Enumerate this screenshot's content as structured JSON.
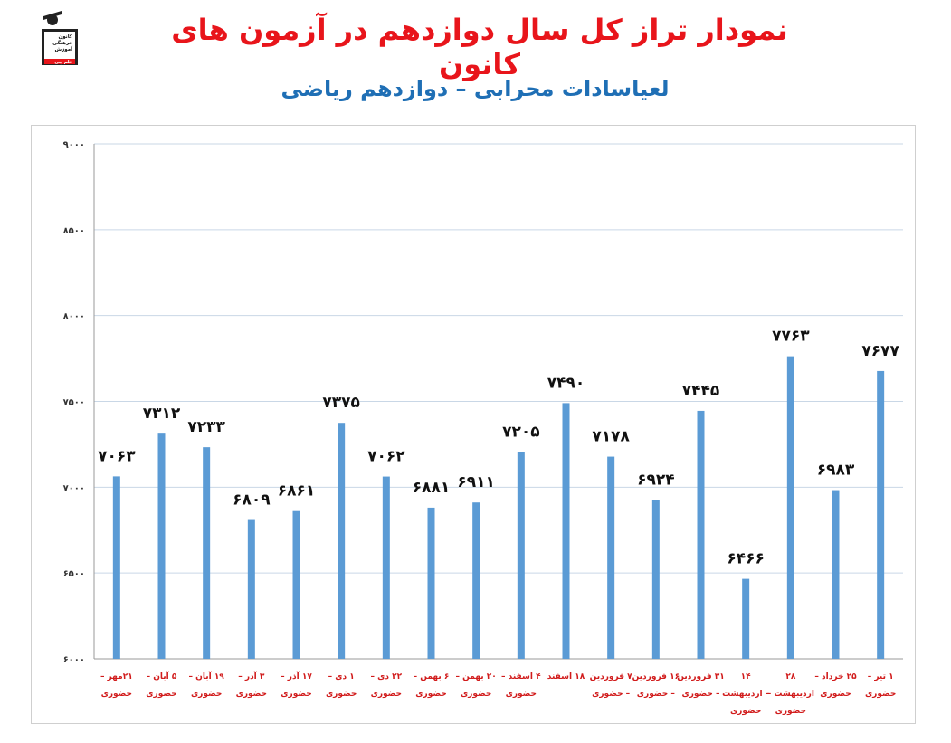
{
  "header": {
    "title": "نمودار تراز کل سال دوازدهم در آزمون های کانون",
    "subtitle": "لعیاسادات محرابی – دوازدهم ریاضی",
    "logo_text": [
      "کانون",
      "فرهنگی",
      "آموزش",
      "قلم چی"
    ]
  },
  "colors": {
    "title": "#e8151b",
    "subtitle": "#1f6fb5",
    "bar": "#5b9bd5",
    "xlabel": "#d11b1b",
    "grid": "#c9d7e6"
  },
  "chart_data": {
    "type": "bar",
    "ylim": [
      6000,
      9000
    ],
    "yticks": [
      6000,
      6500,
      7000,
      7500,
      8000,
      8500,
      9000
    ],
    "ytick_labels": [
      "۶۰۰۰",
      "۶۵۰۰",
      "۷۰۰۰",
      "۷۵۰۰",
      "۸۰۰۰",
      "۸۵۰۰",
      "۹۰۰۰"
    ],
    "grid": true,
    "categories": [
      [
        "۲۱مهر –",
        "حضوری"
      ],
      [
        "۵ آبان –",
        "حضوری"
      ],
      [
        "۱۹ آبان –",
        "حضوری"
      ],
      [
        "۳ آذر –",
        "حضوری"
      ],
      [
        "۱۷ آذر –",
        "حضوری"
      ],
      [
        "۱ دی –",
        "حضوری"
      ],
      [
        "۲۲ دی –",
        "حضوری"
      ],
      [
        "۶ بهمن –",
        "حضوری"
      ],
      [
        "۲۰ بهمن –",
        "حضوری"
      ],
      [
        "۴ اسفند –",
        "حضوری"
      ],
      [
        "۱۸ اسفند"
      ],
      [
        "۷ فروردین",
        "– حضوری"
      ],
      [
        "۱۶ فروردین",
        "– حضوری"
      ],
      [
        "۳۱ فروردین",
        "– حضوری"
      ],
      [
        "۱۴",
        "– اردیبهشت",
        "حضوری"
      ],
      [
        "۲۸",
        "اردیبهشت –",
        "حضوری"
      ],
      [
        "۲۵ خرداد –",
        "حضوری"
      ],
      [
        "۱ تیر –",
        "حضوری"
      ]
    ],
    "values": [
      7063,
      7312,
      7233,
      6809,
      6861,
      7375,
      7062,
      6881,
      6911,
      7205,
      7490,
      7178,
      6924,
      7445,
      6466,
      7763,
      6983,
      7677
    ],
    "value_labels": [
      "۷۰۶۳",
      "۷۳۱۲",
      "۷۲۳۳",
      "۶۸۰۹",
      "۶۸۶۱",
      "۷۳۷۵",
      "۷۰۶۲",
      "۶۸۸۱",
      "۶۹۱۱",
      "۷۲۰۵",
      "۷۴۹۰",
      "۷۱۷۸",
      "۶۹۲۴",
      "۷۴۴۵",
      "۶۴۶۶",
      "۷۷۶۳",
      "۶۹۸۳",
      "۷۶۷۷"
    ]
  }
}
